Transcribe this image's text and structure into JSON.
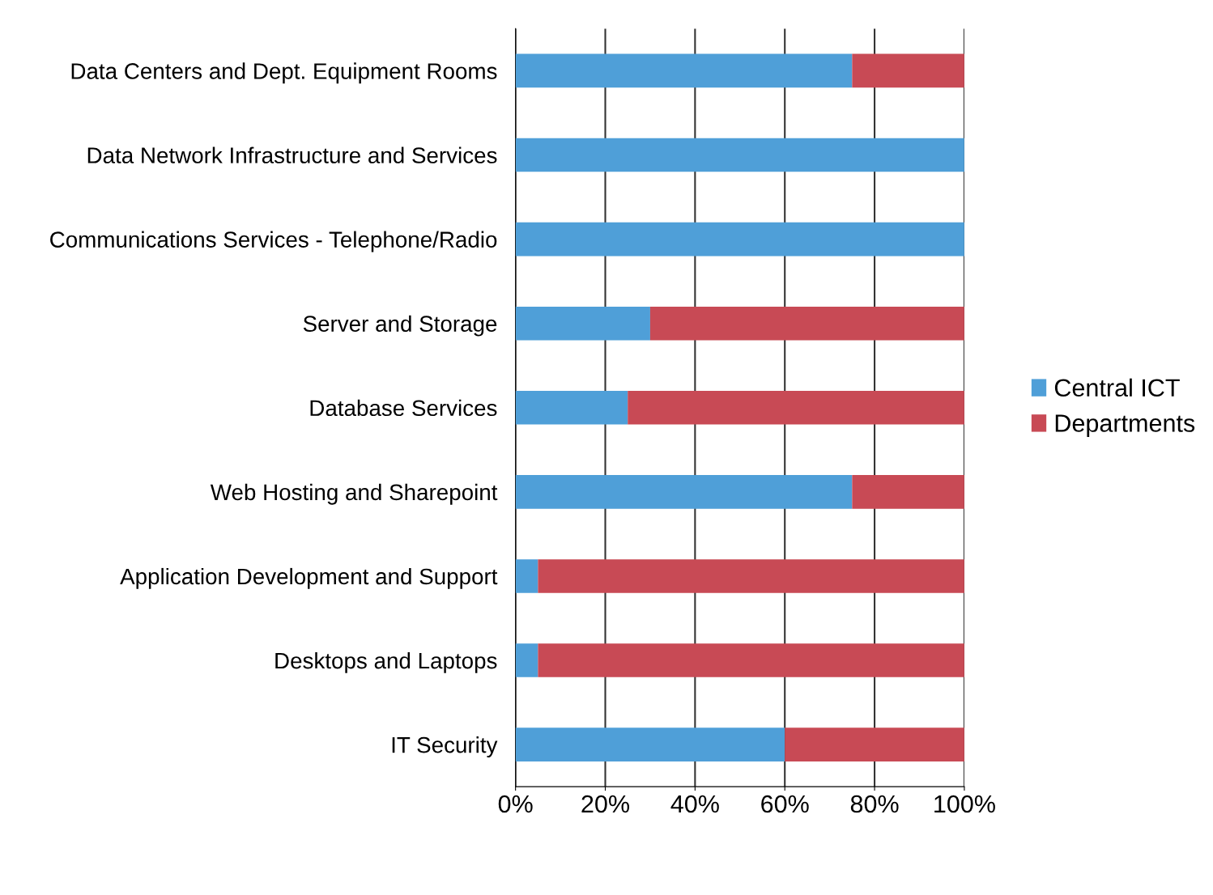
{
  "chart_data": {
    "type": "bar",
    "orientation": "horizontal",
    "stacked": true,
    "categories": [
      "Data Centers and Dept. Equipment Rooms",
      "Data Network Infrastructure and Services",
      "Communications Services - Telephone/Radio",
      "Server and Storage",
      "Database Services",
      "Web Hosting and Sharepoint",
      "Application Development and Support",
      "Desktops and Laptops",
      "IT Security"
    ],
    "series": [
      {
        "name": "Central ICT",
        "color": "#4f9fd8",
        "values": [
          75,
          100,
          100,
          30,
          25,
          75,
          5,
          5,
          60
        ]
      },
      {
        "name": "Departments",
        "color": "#c84a55",
        "values": [
          25,
          0,
          0,
          70,
          75,
          25,
          95,
          95,
          40
        ]
      }
    ],
    "xlim": [
      0,
      100
    ],
    "xticks": [
      {
        "value": 0,
        "label": "0%"
      },
      {
        "value": 20,
        "label": "20%"
      },
      {
        "value": 40,
        "label": "40%"
      },
      {
        "value": 60,
        "label": "60%"
      },
      {
        "value": 80,
        "label": "80%"
      },
      {
        "value": 100,
        "label": "100%"
      }
    ],
    "grid": "x",
    "legend": "right"
  }
}
